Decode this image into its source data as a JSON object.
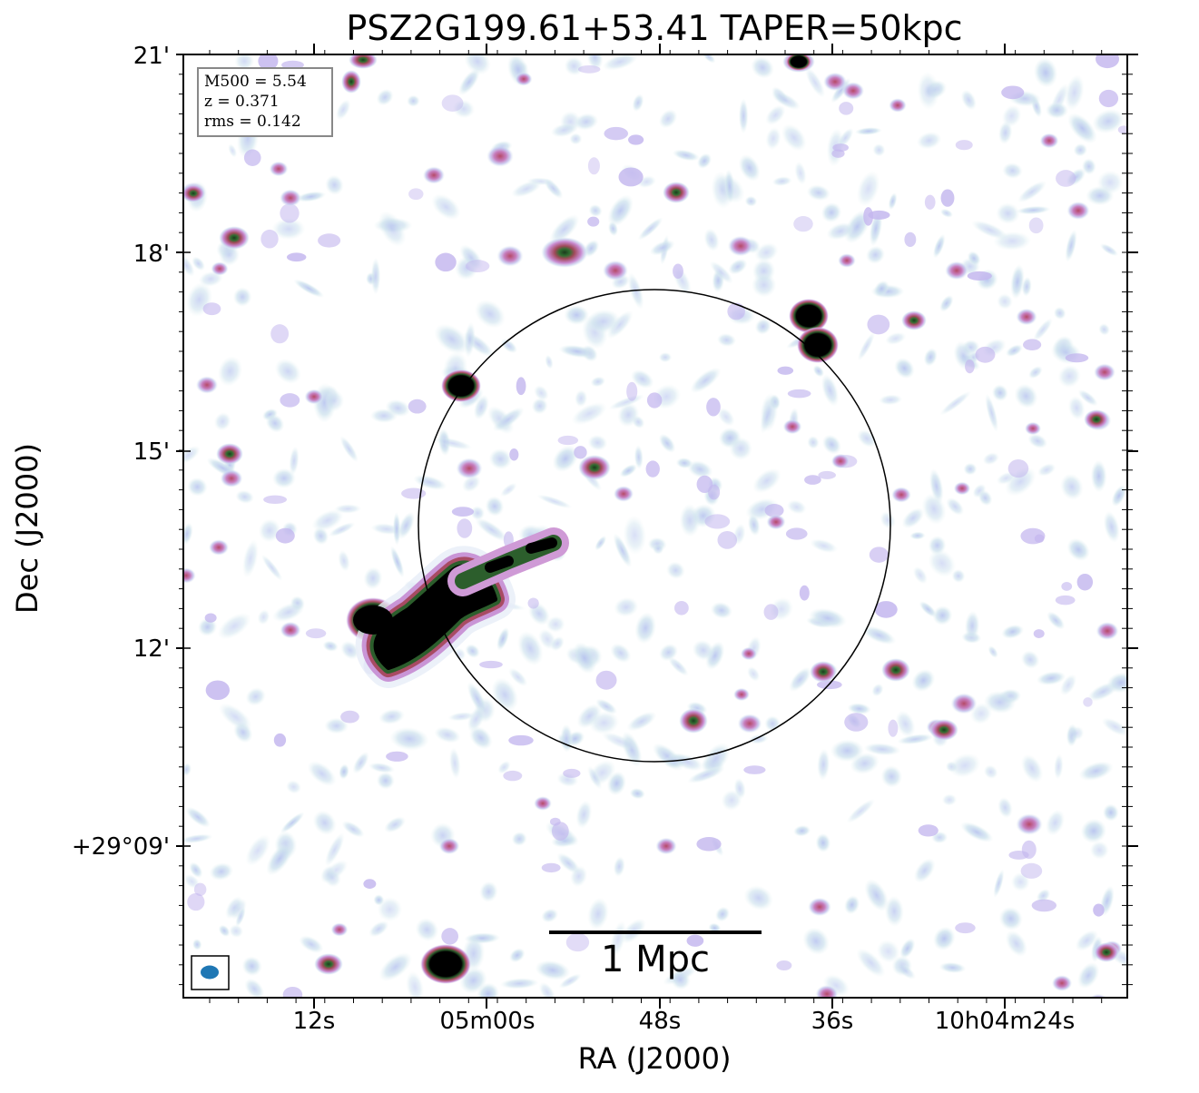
{
  "title": "PSZ2G199.61+53.41 TAPER=50kpc",
  "xlabel": "RA (J2000)",
  "ylabel": "Dec (J2000)",
  "x_ticks": [
    "12s",
    "05m00s",
    "48s",
    "36s",
    "10h04m24s"
  ],
  "y_ticks": [
    "21'",
    "18'",
    "15'",
    "12'",
    "+29°09'"
  ],
  "info": {
    "m500": "M500 = 5.54",
    "z": "z = 0.371",
    "rms": "rms = 0.142"
  },
  "scalebar_label": "1 Mpc",
  "colors": {
    "axes": "#000000",
    "beam": "#1f77b4",
    "info_border": "#888888",
    "emission_faint": "#cfe3ee",
    "emission_low": "#b9c6ee",
    "emission_mid": "#c586c9",
    "emission_high": "#b84a6a",
    "emission_peak": "#2f6d2f",
    "emission_saturated": "#000000"
  }
}
